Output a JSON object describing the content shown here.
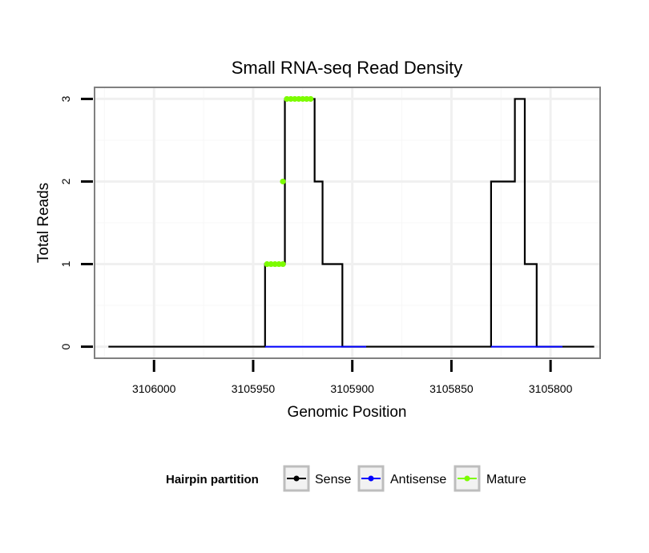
{
  "chart_data": {
    "type": "line",
    "title": "Small RNA-seq Read Density",
    "xlabel": "Genomic Position",
    "ylabel": "Total Reads",
    "x_reversed": true,
    "xlim": [
      3106030,
      3105775
    ],
    "ylim": [
      -0.14,
      3.14
    ],
    "x_ticks": [
      3106000,
      3105950,
      3105900,
      3105850,
      3105800
    ],
    "x_tick_labels": [
      "3106000",
      "3105950",
      "3105900",
      "3105850",
      "3105800"
    ],
    "y_ticks": [
      0,
      1,
      2,
      3
    ],
    "y_tick_labels": [
      "0",
      "1",
      "2",
      "3"
    ],
    "grid": true,
    "legend": {
      "title": "Hairpin partition",
      "position": "bottom",
      "entries": [
        {
          "name": "Sense",
          "color": "#000000"
        },
        {
          "name": "Antisense",
          "color": "#0000ff"
        },
        {
          "name": "Mature",
          "color": "#7cfc00"
        }
      ]
    },
    "series": [
      {
        "name": "Sense",
        "color": "#000000",
        "x": [
          3106023,
          3105944,
          3105944,
          3105934,
          3105934,
          3105919,
          3105919,
          3105915,
          3105915,
          3105905,
          3105905,
          3105893,
          3105893,
          3105830,
          3105830,
          3105818,
          3105818,
          3105813,
          3105813,
          3105807,
          3105807,
          3105794,
          3105794,
          3105778
        ],
        "y": [
          0,
          0,
          1,
          1,
          3,
          3,
          2,
          2,
          1,
          1,
          0,
          0,
          0,
          0,
          2,
          2,
          3,
          3,
          1,
          1,
          0,
          0,
          0,
          0
        ]
      },
      {
        "name": "Antisense",
        "color": "#0000ff",
        "x": [
          3105944,
          3105893,
          3105830,
          3105794
        ],
        "y": [
          0,
          0,
          0,
          0
        ],
        "segments": [
          [
            0,
            1
          ],
          [
            2,
            3
          ]
        ]
      },
      {
        "name": "Mature",
        "color": "#7cfc00",
        "points": [
          {
            "x": 3105943,
            "y": 1
          },
          {
            "x": 3105941,
            "y": 1
          },
          {
            "x": 3105939,
            "y": 1
          },
          {
            "x": 3105937,
            "y": 1
          },
          {
            "x": 3105935,
            "y": 1
          },
          {
            "x": 3105935,
            "y": 2
          },
          {
            "x": 3105933,
            "y": 3
          },
          {
            "x": 3105931,
            "y": 3
          },
          {
            "x": 3105929,
            "y": 3
          },
          {
            "x": 3105927,
            "y": 3
          },
          {
            "x": 3105925,
            "y": 3
          },
          {
            "x": 3105923,
            "y": 3
          },
          {
            "x": 3105921,
            "y": 3
          }
        ]
      }
    ]
  }
}
